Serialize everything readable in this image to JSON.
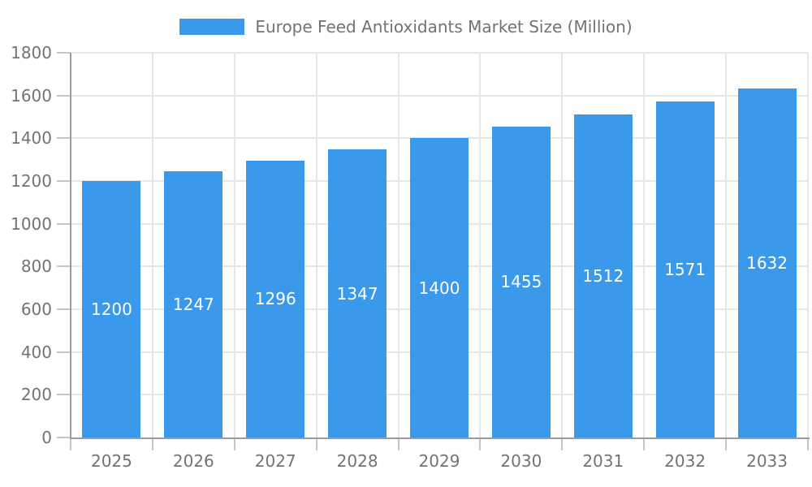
{
  "chart_data": {
    "type": "bar",
    "title": "Europe Feed Antioxidants Market Size (Million)",
    "categories": [
      "2025",
      "2026",
      "2027",
      "2028",
      "2029",
      "2030",
      "2031",
      "2032",
      "2033"
    ],
    "values": [
      1200,
      1247,
      1296,
      1347,
      1400,
      1455,
      1512,
      1571,
      1632
    ],
    "series": [
      {
        "name": "Europe Feed Antioxidants Market Size (Million)",
        "values": [
          1200,
          1247,
          1296,
          1347,
          1400,
          1455,
          1512,
          1571,
          1632
        ]
      }
    ],
    "xlabel": "",
    "ylabel": "",
    "ylim": [
      0,
      1800
    ],
    "y_tick_step": 200,
    "y_tick_labels": [
      "0",
      "200",
      "400",
      "600",
      "800",
      "1000",
      "1200",
      "1400",
      "1600",
      "1800"
    ],
    "grid": true,
    "legend_position": "top-center",
    "bar_labels_visible": true,
    "colors": {
      "bar": "#3B99EC",
      "bar_label": "#FFFFFF",
      "axis_text": "#737373",
      "grid": "#E7E7E7",
      "tick": "#C6C6C6",
      "axis_line": "#9B9B9B",
      "background": "#FFFFFF"
    }
  }
}
